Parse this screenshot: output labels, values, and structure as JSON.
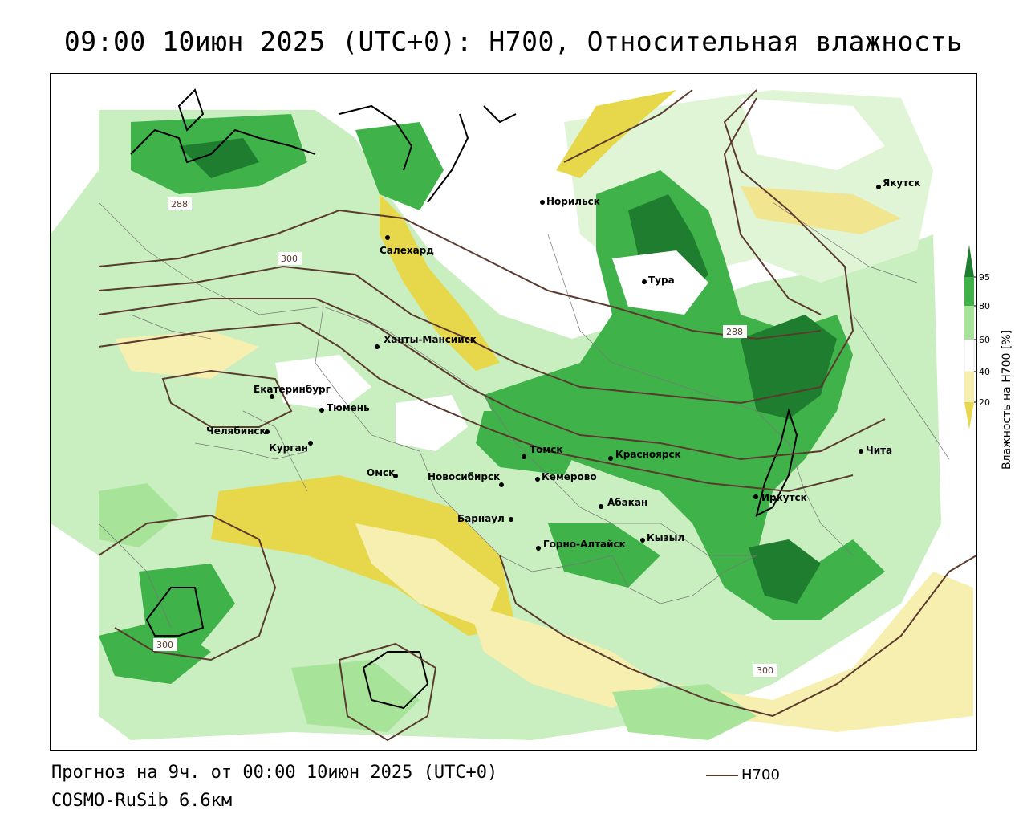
{
  "title": "09:00 10июн 2025 (UTC+0): H700, Относительная влажность",
  "footer": {
    "forecast": "Прогноз на 9ч. от 00:00 10июн 2025 (UTC+0)",
    "model": "COSMO-RuSib 6.6км",
    "contour_legend": "H700"
  },
  "legend": {
    "title": "Влажность на H700 [%]",
    "ticks": [
      "95",
      "80",
      "60",
      "40",
      "20"
    ],
    "colors": {
      "c95": "#1e7d2e",
      "c80": "#3fb24a",
      "c60": "#a8e39a",
      "c40": "#ffffff",
      "c20": "#f7efb0",
      "c0": "#e6d84a"
    }
  },
  "isolines": {
    "labels": [
      "288",
      "300",
      "288",
      "300",
      "300"
    ]
  },
  "cities": [
    {
      "name": "Норильск"
    },
    {
      "name": "Якутск"
    },
    {
      "name": "Салехард"
    },
    {
      "name": "Тура"
    },
    {
      "name": "Ханты-Мансийск"
    },
    {
      "name": "Екатеринбург"
    },
    {
      "name": "Тюмень"
    },
    {
      "name": "Челябинск"
    },
    {
      "name": "Курган"
    },
    {
      "name": "Омск"
    },
    {
      "name": "Новосибирск"
    },
    {
      "name": "Томск"
    },
    {
      "name": "Кемерово"
    },
    {
      "name": "Красноярск"
    },
    {
      "name": "Абакан"
    },
    {
      "name": "Барнаул"
    },
    {
      "name": "Горно-Алтайск"
    },
    {
      "name": "Кызыл"
    },
    {
      "name": "Иркутск"
    },
    {
      "name": "Чита"
    }
  ],
  "colors": {
    "isoline": "#5a3a2e",
    "coast": "#000000",
    "border": "#777777"
  }
}
